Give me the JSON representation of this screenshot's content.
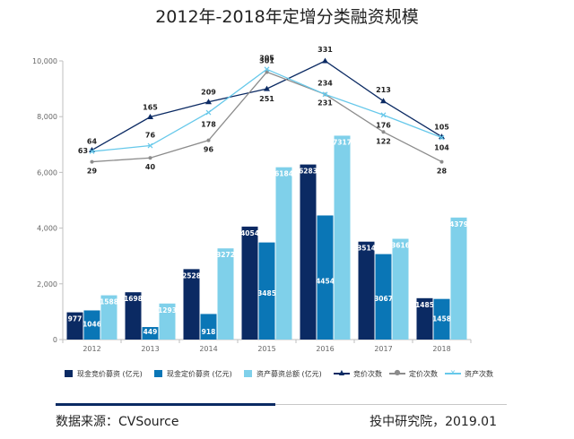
{
  "title": "2012年-2018年定增分类融资规模",
  "chart_data": {
    "type": "bar+line",
    "title": "2012年-2018年定增分类融资规模",
    "categories": [
      "2012",
      "2013",
      "2014",
      "2015",
      "2016",
      "2017",
      "2018"
    ],
    "y_axis": {
      "min": 0,
      "max": 10000,
      "ticks": [
        0,
        2000,
        4000,
        6000,
        8000,
        10000
      ],
      "tick_labels": [
        "0",
        "2,000",
        "4,000",
        "6,000",
        "8,000",
        "10,000"
      ]
    },
    "bar_series": [
      {
        "name": "现金竞价募资 (亿元)",
        "color": "#0b2a63",
        "values": [
          977,
          1698,
          2528,
          4054,
          6283,
          3514,
          1485
        ]
      },
      {
        "name": "现金定价募资 (亿元)",
        "color": "#0a76b6",
        "values": [
          1046,
          449,
          918,
          3485,
          4454,
          3067,
          1458
        ]
      },
      {
        "name": "资产募资总额 (亿元)",
        "color": "#7fd0ea",
        "values": [
          1588,
          1293,
          3272,
          6184,
          7317,
          3616,
          4379
        ]
      }
    ],
    "line_series": [
      {
        "name": "竞价次数",
        "color": "#0b2a63",
        "marker": "triangle",
        "values": [
          64,
          165,
          209,
          251,
          331,
          213,
          105
        ]
      },
      {
        "name": "定价次数",
        "color": "#8c8c8c",
        "marker": "circle",
        "values": [
          29,
          40,
          96,
          301,
          231,
          122,
          28
        ]
      },
      {
        "name": "资产次数",
        "color": "#66c8ea",
        "marker": "x",
        "values": [
          63,
          76,
          178,
          305,
          234,
          176,
          104
        ]
      }
    ],
    "line_y_values": [
      [
        6800,
        7990,
        8530,
        9000,
        10000,
        8560,
        7280
      ],
      [
        6380,
        6520,
        7150,
        9600,
        8800,
        7450,
        6380
      ],
      [
        6750,
        6960,
        8150,
        9700,
        8800,
        8060,
        7250
      ]
    ],
    "grid": false,
    "legend_position": "bottom"
  },
  "legend": [
    {
      "label": "现金竞价募资 (亿元)",
      "type": "bar",
      "color": "#0b2a63"
    },
    {
      "label": "现金定价募资 (亿元)",
      "type": "bar",
      "color": "#0a76b6"
    },
    {
      "label": "资产募资总额 (亿元)",
      "type": "bar",
      "color": "#7fd0ea"
    },
    {
      "label": "竞价次数",
      "type": "line",
      "color": "#0b2a63",
      "marker": "▲"
    },
    {
      "label": "定价次数",
      "type": "line",
      "color": "#8c8c8c",
      "marker": "●"
    },
    {
      "label": "资产次数",
      "type": "line",
      "color": "#66c8ea",
      "marker": "×"
    }
  ],
  "footer": {
    "source": "数据来源：CVSource",
    "credit": "投中研究院，2019.01"
  }
}
